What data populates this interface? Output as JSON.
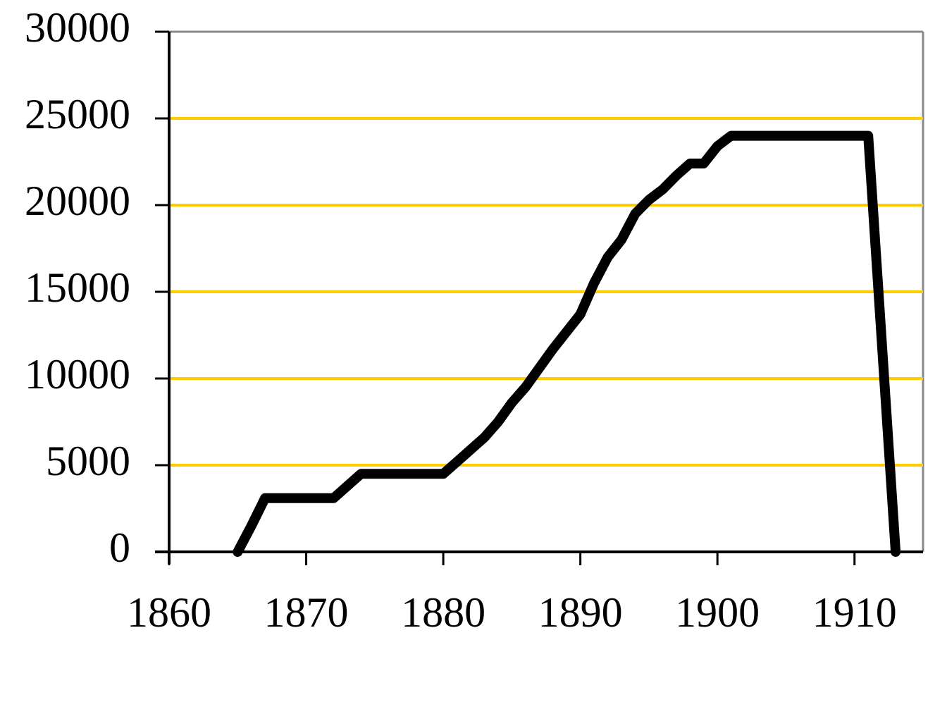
{
  "chart_data": {
    "type": "line",
    "x": [
      1865,
      1866,
      1867,
      1868,
      1869,
      1870,
      1871,
      1872,
      1873,
      1874,
      1875,
      1876,
      1877,
      1878,
      1879,
      1880,
      1881,
      1882,
      1883,
      1884,
      1885,
      1886,
      1887,
      1888,
      1889,
      1890,
      1891,
      1892,
      1893,
      1894,
      1895,
      1896,
      1897,
      1898,
      1899,
      1900,
      1901,
      1902,
      1903,
      1904,
      1905,
      1906,
      1907,
      1908,
      1909,
      1910,
      1911,
      1913
    ],
    "series": [
      {
        "color": "#000000",
        "values": [
          0,
          1500,
          3100,
          3100,
          3100,
          3100,
          3100,
          3100,
          3800,
          4500,
          4500,
          4500,
          4500,
          4500,
          4500,
          4500,
          5200,
          5900,
          6600,
          7500,
          8600,
          9500,
          10600,
          11700,
          12700,
          13700,
          15500,
          17000,
          18000,
          19500,
          20300,
          20900,
          21700,
          22400,
          22400,
          23400,
          24000,
          24000,
          24000,
          24000,
          24000,
          24000,
          24000,
          24000,
          24000,
          24000,
          24000,
          0
        ]
      }
    ],
    "xlim": [
      1860,
      1915
    ],
    "xticks": [
      1860,
      1870,
      1880,
      1890,
      1900,
      1910
    ],
    "ylim": [
      0,
      30000
    ],
    "yticks": [
      0,
      5000,
      10000,
      15000,
      20000,
      25000,
      30000
    ],
    "grid": true,
    "grid_color": "#ffcc00"
  }
}
